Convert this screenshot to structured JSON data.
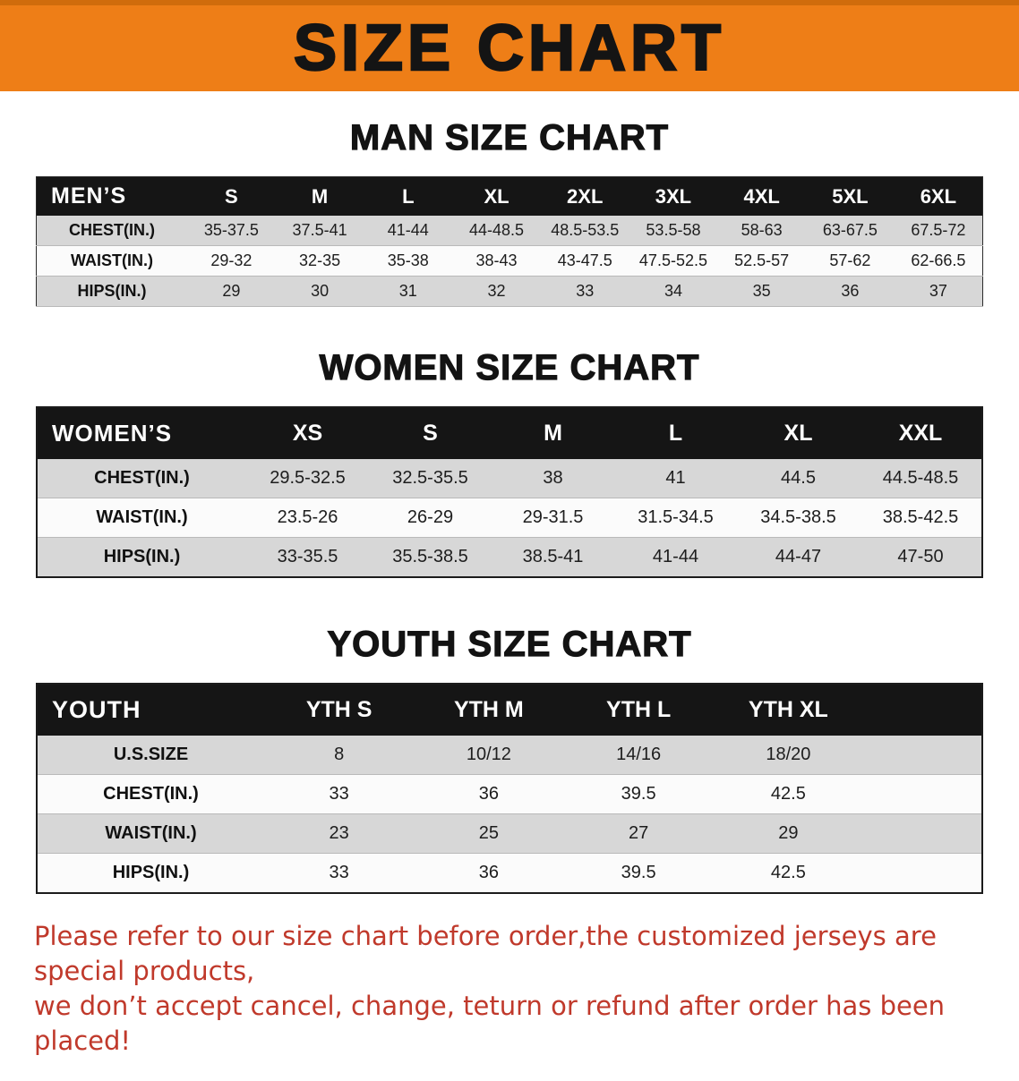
{
  "banner": {
    "title": "SIZE CHART"
  },
  "colors": {
    "banner-bg": "#EE7E17",
    "header-bar": "#151515",
    "row-gray": "#D7D7D7",
    "row-white": "#FBFBFB",
    "disclaimer-red": "#C0392B"
  },
  "men": {
    "heading": "MAN SIZE CHART",
    "corner": "MEN’S",
    "sizes": [
      "S",
      "M",
      "L",
      "XL",
      "2XL",
      "3XL",
      "4XL",
      "5XL",
      "6XL"
    ],
    "rows": [
      {
        "label": "CHEST(IN.)",
        "values": [
          "35-37.5",
          "37.5-41",
          "41-44",
          "44-48.5",
          "48.5-53.5",
          "53.5-58",
          "58-63",
          "63-67.5",
          "67.5-72"
        ]
      },
      {
        "label": "WAIST(IN.)",
        "values": [
          "29-32",
          "32-35",
          "35-38",
          "38-43",
          "43-47.5",
          "47.5-52.5",
          "52.5-57",
          "57-62",
          "62-66.5"
        ]
      },
      {
        "label": "HIPS(IN.)",
        "values": [
          "29",
          "30",
          "31",
          "32",
          "33",
          "34",
          "35",
          "36",
          "37"
        ]
      }
    ]
  },
  "women": {
    "heading": "WOMEN SIZE CHART",
    "corner": "WOMEN’S",
    "sizes": [
      "XS",
      "S",
      "M",
      "L",
      "XL",
      "XXL"
    ],
    "rows": [
      {
        "label": "CHEST(IN.)",
        "values": [
          "29.5-32.5",
          "32.5-35.5",
          "38",
          "41",
          "44.5",
          "44.5-48.5"
        ]
      },
      {
        "label": "WAIST(IN.)",
        "values": [
          "23.5-26",
          "26-29",
          "29-31.5",
          "31.5-34.5",
          "34.5-38.5",
          "38.5-42.5"
        ]
      },
      {
        "label": "HIPS(IN.)",
        "values": [
          "33-35.5",
          "35.5-38.5",
          "38.5-41",
          "41-44",
          "44-47",
          "47-50"
        ]
      }
    ]
  },
  "youth": {
    "heading": "YOUTH SIZE CHART",
    "corner": "YOUTH",
    "sizes": [
      "YTH S",
      "YTH M",
      "YTH L",
      "YTH XL"
    ],
    "rows": [
      {
        "label": "U.S.SIZE",
        "values": [
          "8",
          "10/12",
          "14/16",
          "18/20"
        ]
      },
      {
        "label": "CHEST(IN.)",
        "values": [
          "33",
          "36",
          "39.5",
          "42.5"
        ]
      },
      {
        "label": "WAIST(IN.)",
        "values": [
          "23",
          "25",
          "27",
          "29"
        ]
      },
      {
        "label": "HIPS(IN.)",
        "values": [
          "33",
          "36",
          "39.5",
          "42.5"
        ]
      }
    ]
  },
  "disclaimer": {
    "line1": "Please refer to our size chart before order,the customized jerseys are special products,",
    "line2": "we don’t accept cancel, change, teturn or refund after order has been placed!"
  }
}
